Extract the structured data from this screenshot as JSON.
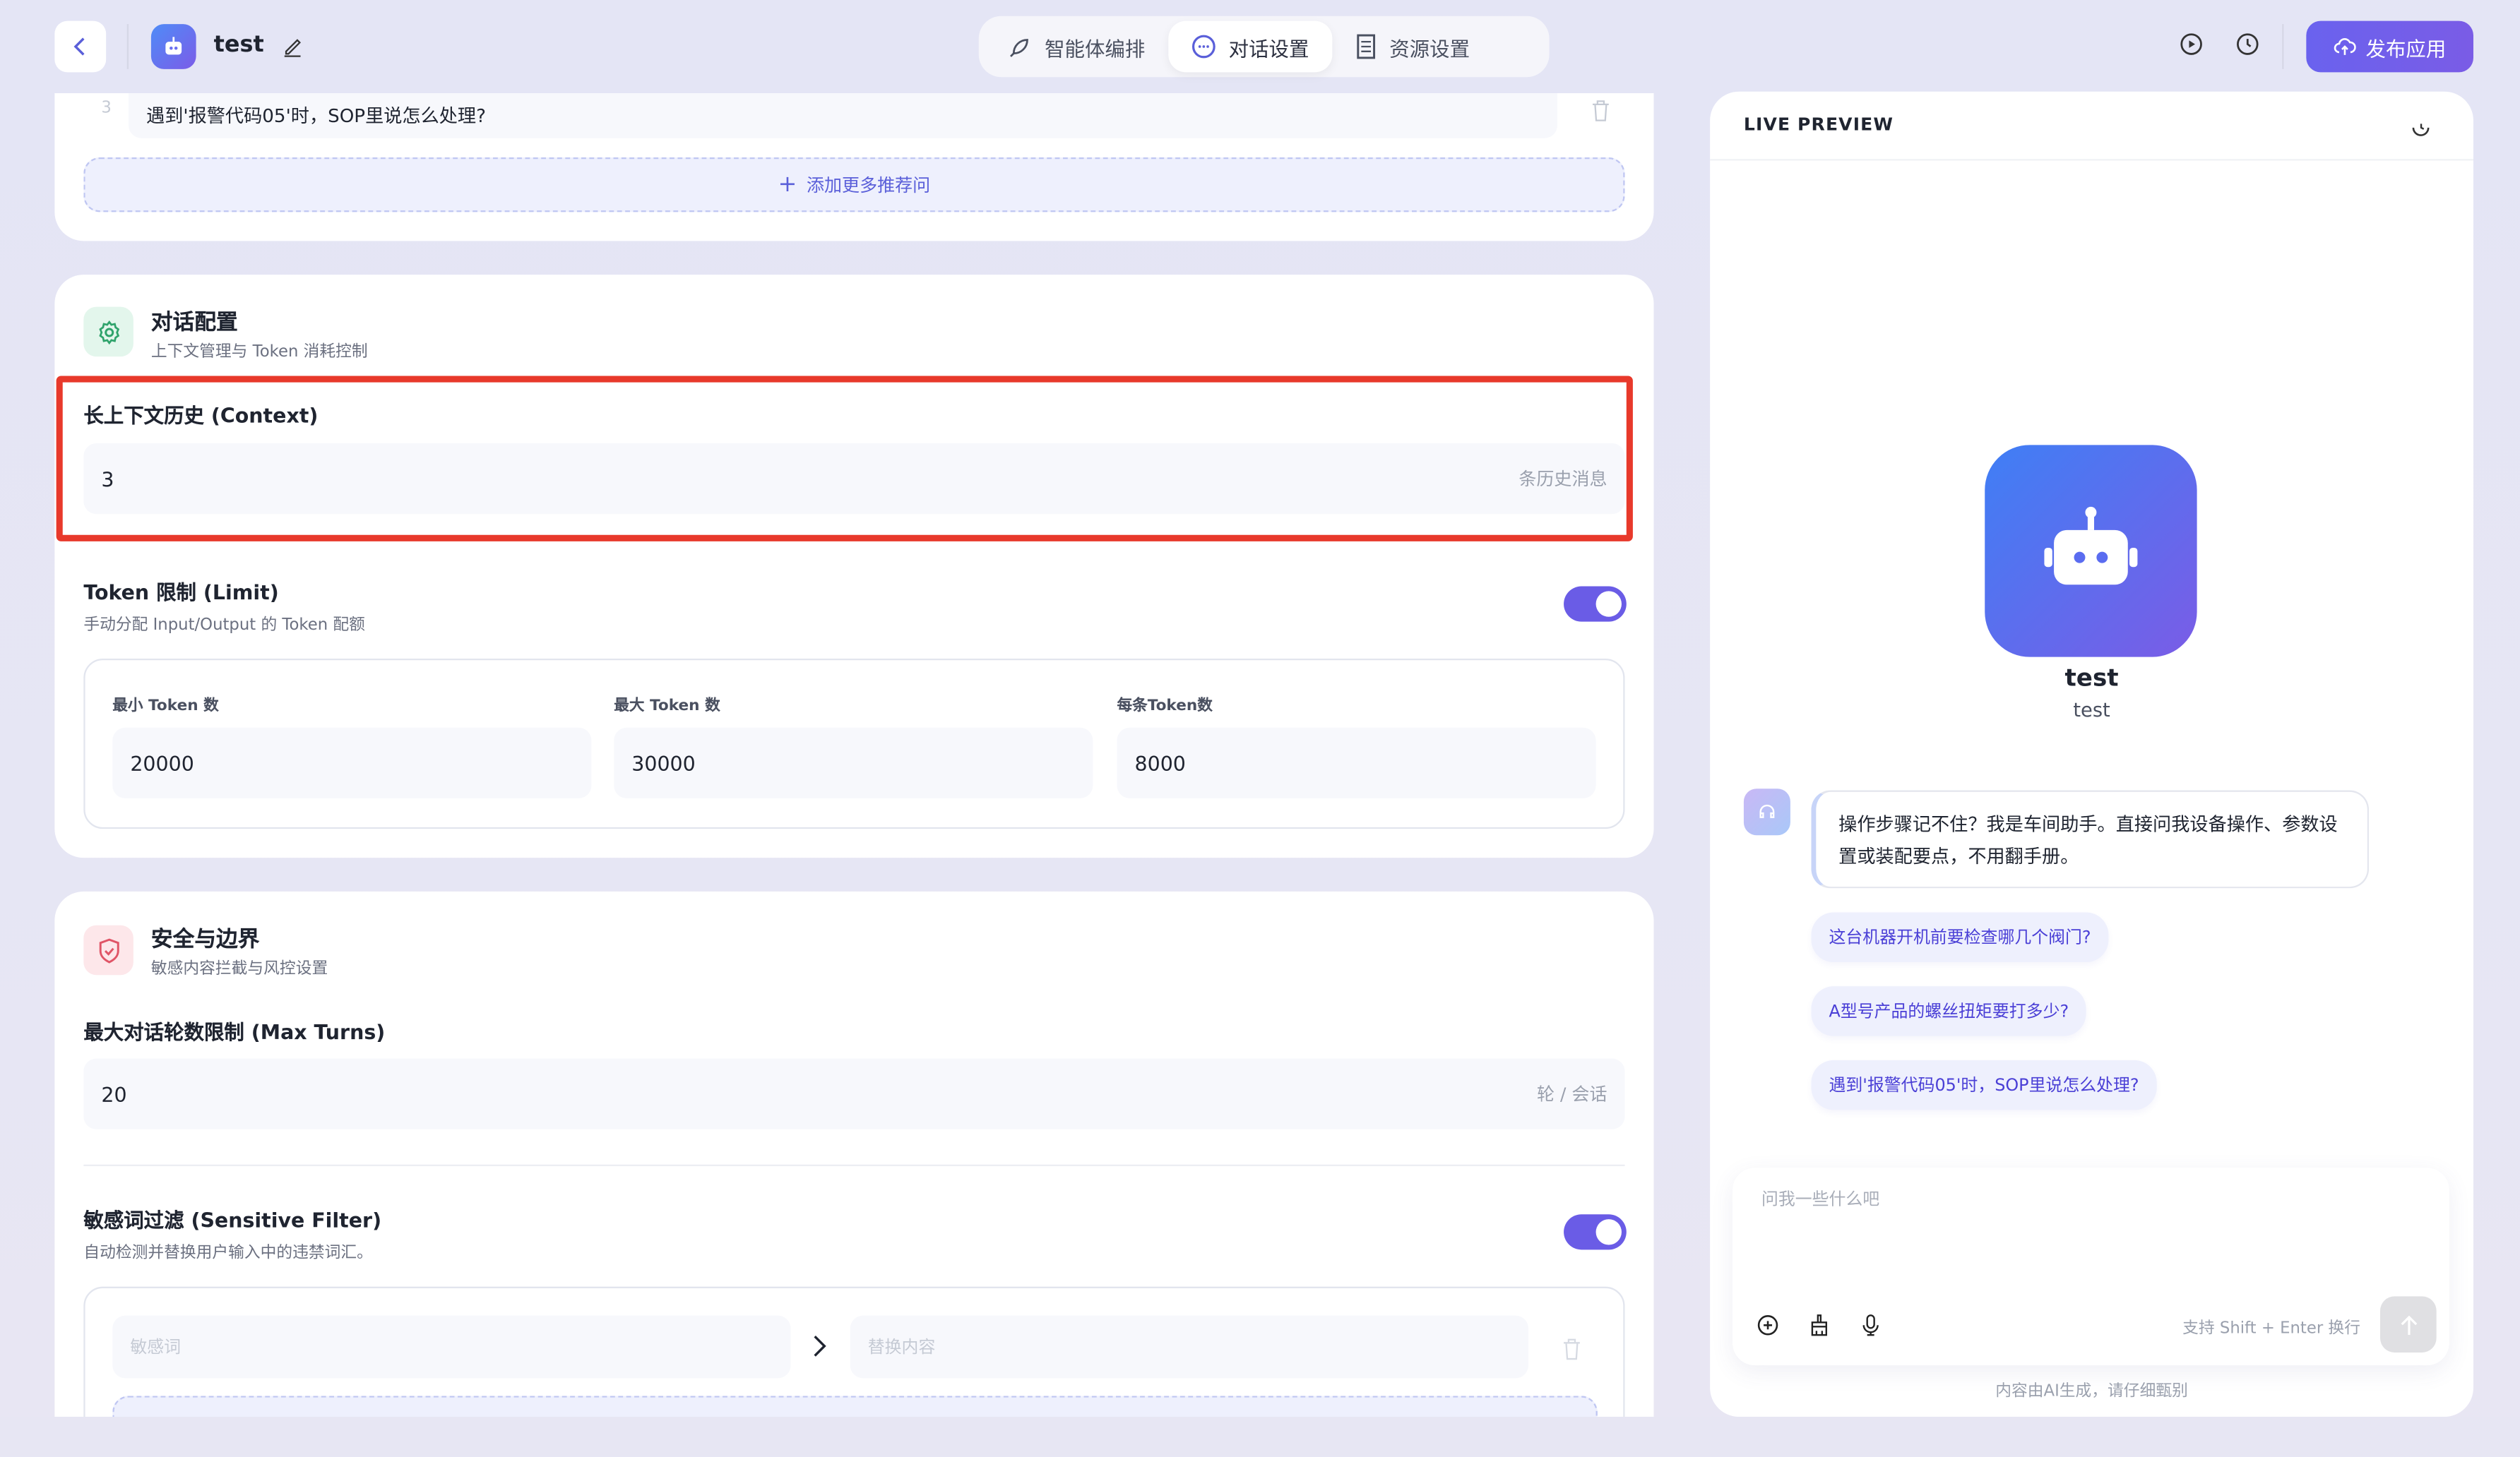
{
  "header": {
    "app_name": "test",
    "tabs": [
      {
        "label": "智能体编排",
        "icon": "rocket-icon"
      },
      {
        "label": "对话设置",
        "icon": "chat-icon",
        "active": true
      },
      {
        "label": "资源设置",
        "icon": "document-icon"
      }
    ],
    "publish_label": "发布应用",
    "accent": "#6a5ce6"
  },
  "suggestions": {
    "last_index": "3",
    "last_value": "遇到'报警代码05'时，SOP里说怎么处理?",
    "add_label": "添加更多推荐问"
  },
  "dialog_config": {
    "title": "对话配置",
    "subtitle": "上下文管理与 Token 消耗控制",
    "context_label": "长上下文历史 (Context)",
    "context_value": "3",
    "context_suffix": "条历史消息",
    "token_label": "Token 限制 (Limit)",
    "token_sub": "手动分配 Input/Output 的 Token 配额",
    "token_enabled": true,
    "min_label": "最小 Token 数",
    "min_value": "20000",
    "max_label": "最大 Token 数",
    "max_value": "30000",
    "per_label": "每条Token数",
    "per_value": "8000"
  },
  "safety": {
    "title": "安全与边界",
    "subtitle": "敏感内容拦截与风控设置",
    "max_turns_label": "最大对话轮数限制 (Max Turns)",
    "max_turns_value": "20",
    "max_turns_suffix": "轮 / 会话",
    "filter_label": "敏感词过滤 (Sensitive Filter)",
    "filter_sub": "自动检测并替换用户输入中的违禁词汇。",
    "filter_enabled": true,
    "word_placeholder": "敏感词",
    "replace_placeholder": "替换内容"
  },
  "preview": {
    "title": "LIVE PREVIEW",
    "bot_name": "test",
    "bot_desc": "test",
    "greeting": "操作步骤记不住？我是车间助手。直接问我设备操作、参数设置或装配要点，不用翻手册。",
    "chips": [
      "这台机器开机前要检查哪几个阀门?",
      "A型号产品的螺丝扭矩要打多少?",
      "遇到'报警代码05'时，SOP里说怎么处理?"
    ],
    "input_placeholder": "问我一些什么吧",
    "hint": "支持 Shift + Enter 换行",
    "disclaimer": "内容由AI生成，请仔细甄别"
  }
}
